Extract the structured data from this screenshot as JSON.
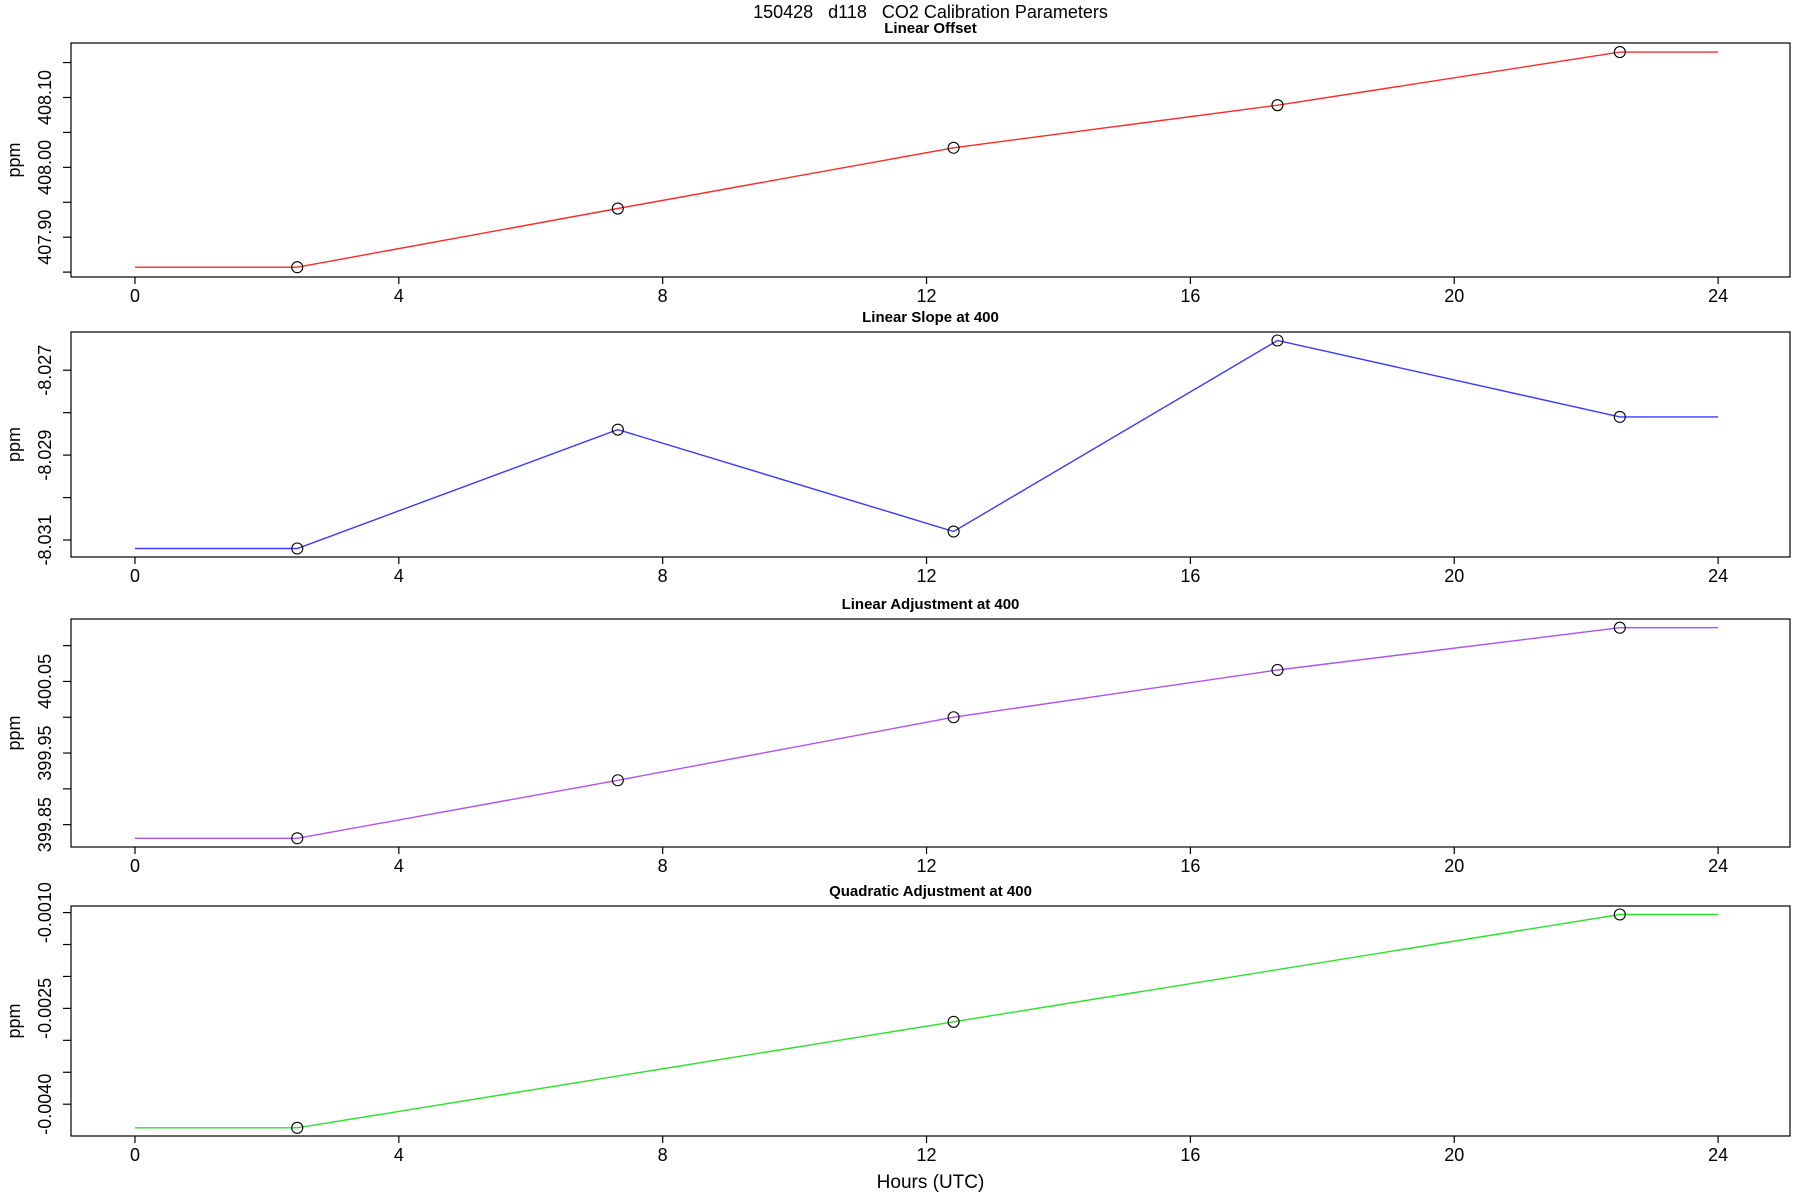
{
  "title": "150428   d118   CO2 Calibration Parameters",
  "xlabel": "Hours (UTC)",
  "x_axis": {
    "lim": [
      -0.97,
      25.09
    ],
    "ticks": [
      {
        "v": 0,
        "label": "0"
      },
      {
        "v": 4,
        "label": "4"
      },
      {
        "v": 8,
        "label": "8"
      },
      {
        "v": 12,
        "label": "12"
      },
      {
        "v": 16,
        "label": "16"
      },
      {
        "v": 20,
        "label": "20"
      },
      {
        "v": 24,
        "label": "24"
      }
    ]
  },
  "chart_data": [
    {
      "type": "line",
      "title": "Linear Offset",
      "ylabel": "ppm",
      "color": "#ff2a2a",
      "marker": "open-circle",
      "ylim": [
        407.843,
        408.178
      ],
      "yticks": [
        {
          "v": 407.85,
          "label": ""
        },
        {
          "v": 407.9,
          "label": "407.90"
        },
        {
          "v": 407.95,
          "label": ""
        },
        {
          "v": 408.0,
          "label": "408.00"
        },
        {
          "v": 408.05,
          "label": ""
        },
        {
          "v": 408.1,
          "label": "408.10"
        },
        {
          "v": 408.15,
          "label": ""
        }
      ],
      "x": [
        2.46,
        7.32,
        12.41,
        17.32,
        22.51
      ],
      "y": [
        407.857,
        407.941,
        408.028,
        408.089,
        408.165
      ],
      "line_start_x": 0,
      "line_end_x": 24
    },
    {
      "type": "line",
      "title": "Linear Slope at 400",
      "ylabel": "ppm",
      "color": "#3a3aff",
      "marker": "open-circle",
      "ylim": [
        -8.0314,
        -8.0261
      ],
      "yticks": [
        {
          "v": -8.027,
          "label": "-8.027"
        },
        {
          "v": -8.028,
          "label": ""
        },
        {
          "v": -8.029,
          "label": "-8.029"
        },
        {
          "v": -8.03,
          "label": ""
        },
        {
          "v": -8.031,
          "label": "-8.031"
        }
      ],
      "x": [
        2.46,
        7.32,
        12.41,
        17.32,
        22.51
      ],
      "y": [
        -8.0312,
        -8.0284,
        -8.0308,
        -8.0263,
        -8.0281
      ],
      "line_start_x": 0,
      "line_end_x": 24
    },
    {
      "type": "line",
      "title": "Linear Adjustment at 400",
      "ylabel": "ppm",
      "color": "#b052f0",
      "marker": "open-circle",
      "ylim": [
        399.8188,
        400.1372
      ],
      "yticks": [
        {
          "v": 400.1,
          "label": ""
        },
        {
          "v": 400.05,
          "label": "400.05"
        },
        {
          "v": 400.0,
          "label": ""
        },
        {
          "v": 399.95,
          "label": "399.95"
        },
        {
          "v": 399.9,
          "label": ""
        },
        {
          "v": 399.85,
          "label": "399.85"
        }
      ],
      "x": [
        2.46,
        7.32,
        12.41,
        17.32,
        22.51
      ],
      "y": [
        399.831,
        399.912,
        400.0,
        400.066,
        400.125
      ],
      "line_start_x": 0,
      "line_end_x": 24
    },
    {
      "type": "line",
      "title": "Quadratic Adjustment at 400",
      "ylabel": "ppm",
      "color": "#2ee02e",
      "marker": "open-circle",
      "ylim": [
        -0.004498,
        -0.000897
      ],
      "yticks": [
        {
          "v": -0.001,
          "label": "-0.0010"
        },
        {
          "v": -0.0015,
          "label": ""
        },
        {
          "v": -0.002,
          "label": ""
        },
        {
          "v": -0.0025,
          "label": "-0.0025"
        },
        {
          "v": -0.003,
          "label": ""
        },
        {
          "v": -0.0035,
          "label": ""
        },
        {
          "v": -0.004,
          "label": "-0.0040"
        }
      ],
      "x": [
        2.46,
        12.41,
        22.51
      ],
      "y": [
        -0.00437,
        -0.00271,
        -0.00103
      ],
      "line_start_x": 0,
      "line_end_x": 24
    }
  ]
}
